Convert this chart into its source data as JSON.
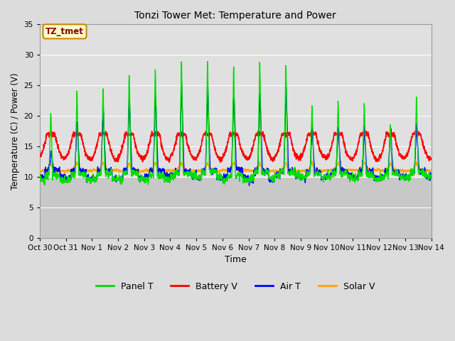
{
  "title": "Tonzi Tower Met: Temperature and Power",
  "xlabel": "Time",
  "ylabel": "Temperature (C) / Power (V)",
  "ylim": [
    0,
    35
  ],
  "yticks": [
    0,
    5,
    10,
    15,
    20,
    25,
    30,
    35
  ],
  "bg_color": "#dcdcdc",
  "plot_bg_upper": "#e8e8e8",
  "plot_bg_lower": "#d0d0d0",
  "grid_color": "#ffffff",
  "annotation_text": "TZ_tmet",
  "annotation_bg": "#ffffcc",
  "annotation_border": "#cc8800",
  "annotation_text_color": "#880000",
  "legend_entries": [
    "Panel T",
    "Battery V",
    "Air T",
    "Solar V"
  ],
  "line_colors": {
    "panel_t": "#00dd00",
    "battery_v": "#ff0000",
    "air_t": "#0000ff",
    "solar_v": "#ffa500"
  },
  "legend_colors": [
    "#00dd00",
    "#ff0000",
    "#0000ff",
    "#ffa500"
  ],
  "x_tick_labels": [
    "Oct 30",
    "Oct 31",
    "Nov 1",
    "Nov 2",
    "Nov 3",
    "Nov 4",
    "Nov 5",
    "Nov 6",
    "Nov 7",
    "Nov 8",
    "Nov 9",
    "Nov 10",
    "Nov 11",
    "Nov 12",
    "Nov 13",
    "Nov 14"
  ],
  "num_days": 15,
  "points_per_day": 144
}
